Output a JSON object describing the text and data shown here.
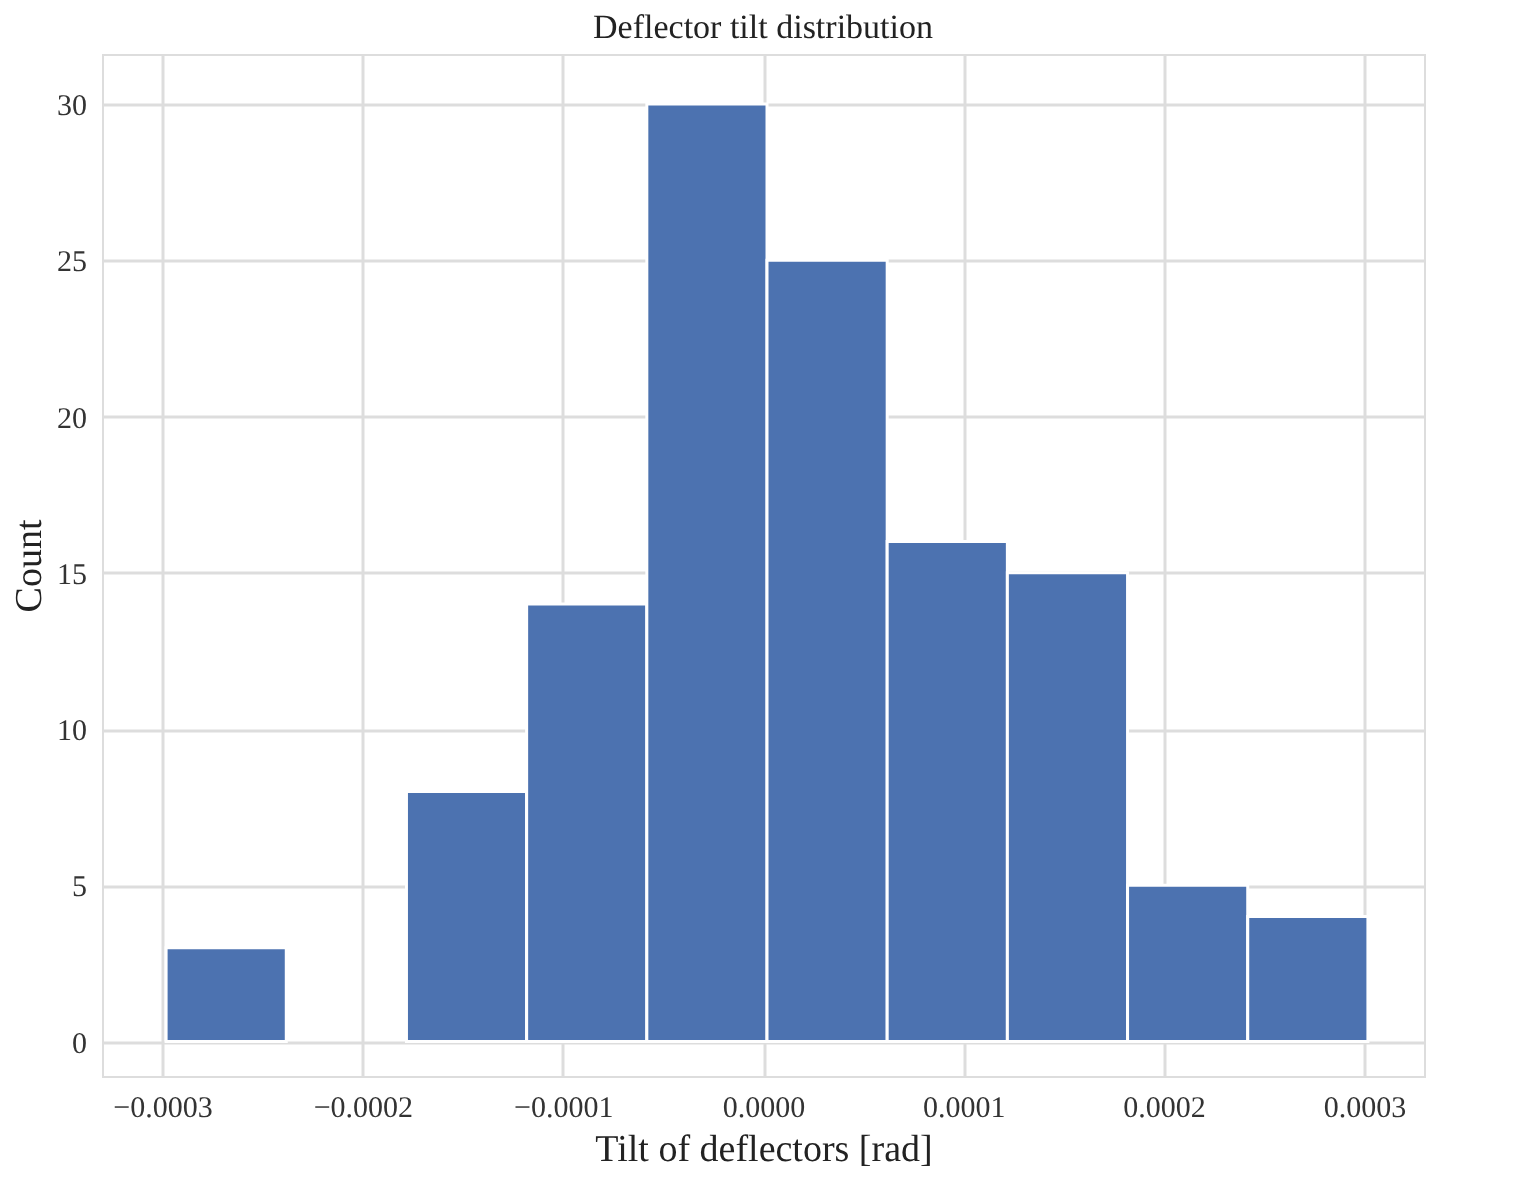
{
  "chart_data": {
    "type": "histogram",
    "title": "Deflector tilt distribution",
    "xlabel": "Tilt of deflectors [rad]",
    "ylabel": "Count",
    "bins": [
      -0.000298,
      -0.000238,
      -0.000178,
      -0.000118,
      -5.8e-05,
      2e-06,
      6.2e-05,
      0.000122,
      0.000182,
      0.000242,
      0.000302
    ],
    "values": [
      3,
      0,
      8,
      14,
      30,
      25,
      16,
      15,
      5,
      4
    ],
    "color": "#4c72b0",
    "xlim": [
      -0.00033,
      0.00033
    ],
    "ylim": [
      -1.1,
      31.6
    ],
    "xticks": [
      {
        "value": -0.0003,
        "label": "−0.0003"
      },
      {
        "value": -0.0002,
        "label": "−0.0002"
      },
      {
        "value": -0.0001,
        "label": "−0.0001"
      },
      {
        "value": 0,
        "label": "0.0000"
      },
      {
        "value": 0.0001,
        "label": "0.0001"
      },
      {
        "value": 0.0002,
        "label": "0.0002"
      },
      {
        "value": 0.0003,
        "label": "0.0003"
      }
    ],
    "yticks": [
      0,
      5,
      10,
      15,
      20,
      25,
      30
    ],
    "grid": true
  }
}
